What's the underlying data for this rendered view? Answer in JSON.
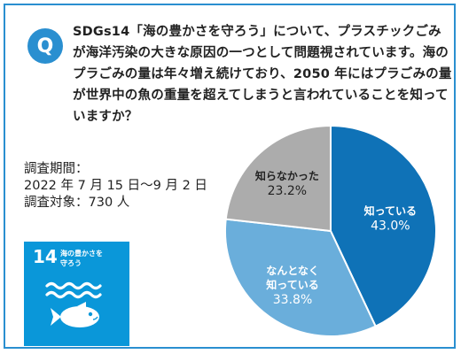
{
  "question": {
    "badge": "Q",
    "text": "SDGs14「海の豊かさを守ろう」について、プラスチックごみが海洋汚染の大きな原因の一つとして問題視されています。海のプラごみの量は年々増え続けており、2050 年にはプラごみの量が世界中の魚の重量を超えてしまうと言われていることを知っていますか？"
  },
  "survey": {
    "period_label": "調査期間：",
    "period_value": "2022 年 7 月 15 日〜9 月 2 日",
    "target": "調査対象：730 人"
  },
  "sdg": {
    "number": "14",
    "title_line1": "海の豊かさを",
    "title_line2": "守ろう"
  },
  "colors": {
    "accent": "#2a8fd0",
    "sdg14": "#0a97d9"
  },
  "chart_data": {
    "type": "pie",
    "slices": [
      {
        "label": "知っている",
        "value": 43.0,
        "value_label": "43.0%",
        "color": "#0f72b7",
        "text_color": "#ffffff"
      },
      {
        "label": "なんとなく\n知っている",
        "value": 33.8,
        "value_label": "33.8%",
        "color": "#6aaedb",
        "text_color": "#ffffff"
      },
      {
        "label": "知らなかった",
        "value": 23.2,
        "value_label": "23.2%",
        "color": "#acacac",
        "text_color": "#222222"
      }
    ]
  }
}
